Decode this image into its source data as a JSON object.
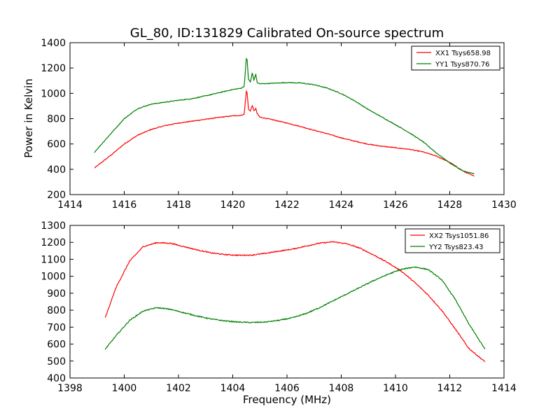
{
  "figure": {
    "title": "GL_80, ID:131829 Calibrated On-source spectrum",
    "ylabel": "Power in Kelvin",
    "xlabel": "Frequency (MHz)"
  },
  "chart_data": [
    {
      "type": "line",
      "title": "GL_80, ID:131829 Calibrated On-source spectrum",
      "xlabel": "",
      "ylabel": "Power in Kelvin",
      "xlim": [
        1414,
        1430
      ],
      "ylim": [
        200,
        1400
      ],
      "xticks": [
        1414,
        1416,
        1418,
        1420,
        1422,
        1424,
        1426,
        1428,
        1430
      ],
      "yticks": [
        200,
        400,
        600,
        800,
        1000,
        1200,
        1400
      ],
      "grid": false,
      "legend": "top-right",
      "series": [
        {
          "name": "XX1 Tsys658.98",
          "color": "#ff0000",
          "x": [
            1414.9,
            1415.5,
            1416.0,
            1416.5,
            1417.0,
            1417.5,
            1418.0,
            1418.5,
            1419.0,
            1419.5,
            1420.0,
            1420.3,
            1420.42,
            1420.5,
            1420.53,
            1420.58,
            1420.65,
            1420.72,
            1420.78,
            1420.85,
            1420.9,
            1421.0,
            1421.5,
            1422.0,
            1422.5,
            1423.0,
            1423.5,
            1424.0,
            1424.5,
            1425.0,
            1425.5,
            1426.0,
            1426.5,
            1427.0,
            1427.5,
            1428.0,
            1428.5,
            1428.9
          ],
          "values": [
            410,
            510,
            600,
            670,
            715,
            745,
            765,
            780,
            795,
            810,
            822,
            826,
            835,
            1015,
            1005,
            875,
            860,
            905,
            862,
            880,
            840,
            812,
            790,
            765,
            738,
            708,
            680,
            648,
            622,
            598,
            582,
            570,
            558,
            538,
            505,
            455,
            385,
            345
          ]
        },
        {
          "name": "YY1 Tsys870.76",
          "color": "#008000",
          "x": [
            1414.9,
            1415.5,
            1416.0,
            1416.5,
            1417.0,
            1417.5,
            1418.0,
            1418.5,
            1419.0,
            1419.5,
            1420.0,
            1420.3,
            1420.42,
            1420.5,
            1420.53,
            1420.58,
            1420.65,
            1420.72,
            1420.78,
            1420.85,
            1420.9,
            1421.0,
            1421.5,
            1422.0,
            1422.5,
            1423.0,
            1423.5,
            1424.0,
            1424.5,
            1425.0,
            1425.5,
            1426.0,
            1426.5,
            1427.0,
            1427.5,
            1428.0,
            1428.5,
            1428.9
          ],
          "values": [
            535,
            680,
            800,
            880,
            915,
            930,
            945,
            958,
            980,
            1005,
            1030,
            1040,
            1055,
            1272,
            1265,
            1110,
            1090,
            1160,
            1105,
            1150,
            1085,
            1075,
            1080,
            1085,
            1082,
            1068,
            1040,
            998,
            940,
            872,
            812,
            752,
            690,
            620,
            530,
            450,
            385,
            365
          ]
        }
      ]
    },
    {
      "type": "line",
      "title": "",
      "xlabel": "Frequency (MHz)",
      "ylabel": "",
      "xlim": [
        1398,
        1414
      ],
      "ylim": [
        400,
        1300
      ],
      "xticks": [
        1398,
        1400,
        1402,
        1404,
        1406,
        1408,
        1410,
        1412,
        1414
      ],
      "yticks": [
        400,
        500,
        600,
        700,
        800,
        900,
        1000,
        1100,
        1200,
        1300
      ],
      "grid": false,
      "legend": "top-right",
      "series": [
        {
          "name": "XX2 Tsys1051.86",
          "color": "#ff0000",
          "x": [
            1399.3,
            1399.7,
            1400.2,
            1400.7,
            1401.2,
            1401.7,
            1402.2,
            1402.7,
            1403.2,
            1403.7,
            1404.2,
            1404.7,
            1405.2,
            1405.7,
            1406.2,
            1406.7,
            1407.2,
            1407.7,
            1408.2,
            1408.7,
            1409.2,
            1409.7,
            1410.2,
            1410.7,
            1411.2,
            1411.7,
            1412.2,
            1412.7,
            1413.3
          ],
          "values": [
            755,
            935,
            1090,
            1175,
            1198,
            1195,
            1175,
            1155,
            1138,
            1128,
            1124,
            1125,
            1135,
            1148,
            1160,
            1178,
            1195,
            1203,
            1192,
            1165,
            1125,
            1082,
            1032,
            965,
            890,
            800,
            690,
            575,
            495
          ]
        },
        {
          "name": "YY2 Tsys823.43",
          "color": "#008000",
          "x": [
            1399.3,
            1399.7,
            1400.2,
            1400.7,
            1401.2,
            1401.7,
            1402.2,
            1402.7,
            1403.2,
            1403.7,
            1404.2,
            1404.7,
            1405.2,
            1405.7,
            1406.2,
            1406.7,
            1407.2,
            1407.7,
            1408.2,
            1408.7,
            1409.2,
            1409.7,
            1410.2,
            1410.7,
            1411.2,
            1411.7,
            1412.2,
            1412.7,
            1413.3
          ],
          "values": [
            570,
            650,
            740,
            795,
            815,
            805,
            785,
            765,
            748,
            737,
            730,
            727,
            730,
            740,
            755,
            780,
            815,
            855,
            895,
            935,
            975,
            1010,
            1040,
            1055,
            1040,
            980,
            865,
            720,
            570
          ]
        }
      ]
    }
  ]
}
